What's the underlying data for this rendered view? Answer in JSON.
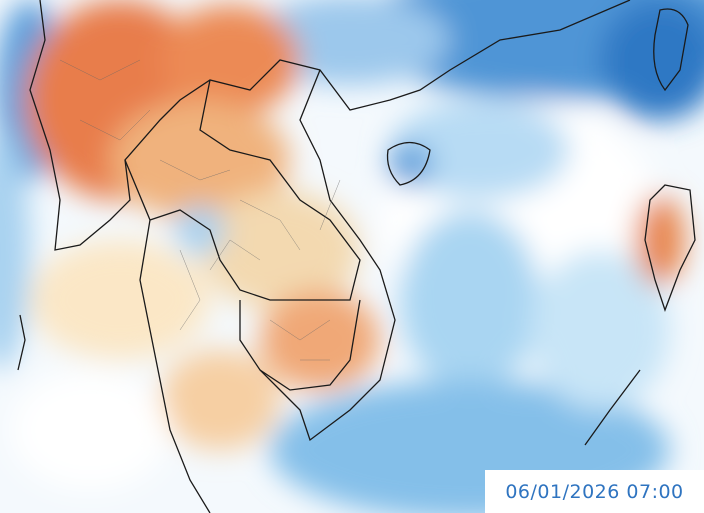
{
  "timestamp": "06/01/2026 07:00"
}
